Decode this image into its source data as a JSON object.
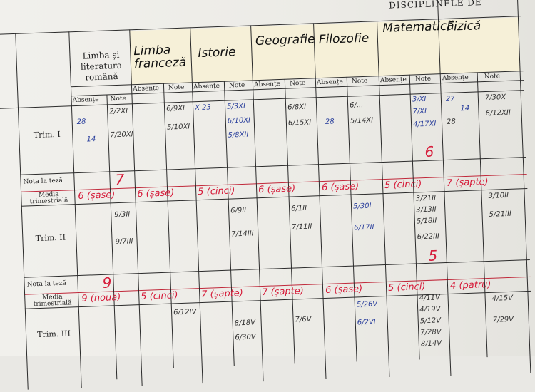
{
  "header": {
    "title": "DISCIPLINELE DE"
  },
  "subjects": [
    {
      "name": "Limba și literatura română"
    },
    {
      "name": "Limba franceză"
    },
    {
      "name": "Istorie"
    },
    {
      "name": "Geografie"
    },
    {
      "name": "Filozofie"
    },
    {
      "name": "Matematică"
    },
    {
      "name": "Fizică"
    }
  ],
  "column_labels": {
    "absente": "Absențe",
    "note": "Note"
  },
  "row_labels": {
    "trim1": "Trim. I",
    "trim2": "Trim. II",
    "trim3": "Trim. III",
    "teza": "Nota la teză",
    "media": "Media trimestrială"
  },
  "trim1": {
    "teze": {
      "romana": "7",
      "matematica": "6"
    },
    "medii": [
      "6 (șase)",
      "6 (șase)",
      "5 (cinci)",
      "6 (șase)",
      "6 (șase)",
      "5 (cinci)",
      "7 (șapte)"
    ],
    "note": {
      "romana": [
        "2/2XI",
        "7/20XI"
      ],
      "franceza": [
        "6/9XI",
        "5/10XI"
      ],
      "istorie": [
        "5/3XI",
        "6/10XI",
        "5/8XII"
      ],
      "geografie": [
        "6/8XI",
        "6/15XI"
      ],
      "filozofie": [
        "6/...",
        "5/14XI"
      ],
      "matematica": [
        "3/XI",
        "7/XI",
        "4/17XI"
      ],
      "fizica": [
        "7/30X",
        "6/12XII"
      ]
    },
    "absente": {
      "romana": [
        "28",
        "14"
      ],
      "istorie": [
        "X 23"
      ],
      "filozofie": [
        "28"
      ],
      "fizica": [
        "27",
        "14",
        "28"
      ]
    }
  },
  "trim2": {
    "teze": {
      "romana": "9",
      "matematica": "5"
    },
    "medii": [
      "9 (nouă)",
      "5 (cinci)",
      "7 (șapte)",
      "7 (șapte)",
      "6 (șase)",
      "5 (cinci)",
      "4 (patru)"
    ],
    "note": {
      "romana": [
        "9/3II",
        "9/7III"
      ],
      "istorie": [
        "6/9II",
        "7/14III"
      ],
      "geografie": [
        "6/1II",
        "7/11II"
      ],
      "filozofie": [
        "5/30I",
        "6/17II"
      ],
      "matematica": [
        "3/21II",
        "3/13II",
        "5/18II",
        "6/22III"
      ],
      "fizica": [
        "3/10II",
        "5/21III"
      ]
    }
  },
  "trim3": {
    "note": {
      "istorie": [
        "6/12IV",
        "8/18V",
        "6/30V"
      ],
      "geografie": [
        "7/6V"
      ],
      "filozofie": [
        "5/26V",
        "6/2VI"
      ],
      "matematica": [
        "4/11V",
        "4/19V",
        "5/12V",
        "7/28V",
        "8/14V"
      ],
      "fizica": [
        "4/15V",
        "7/29V"
      ]
    }
  }
}
